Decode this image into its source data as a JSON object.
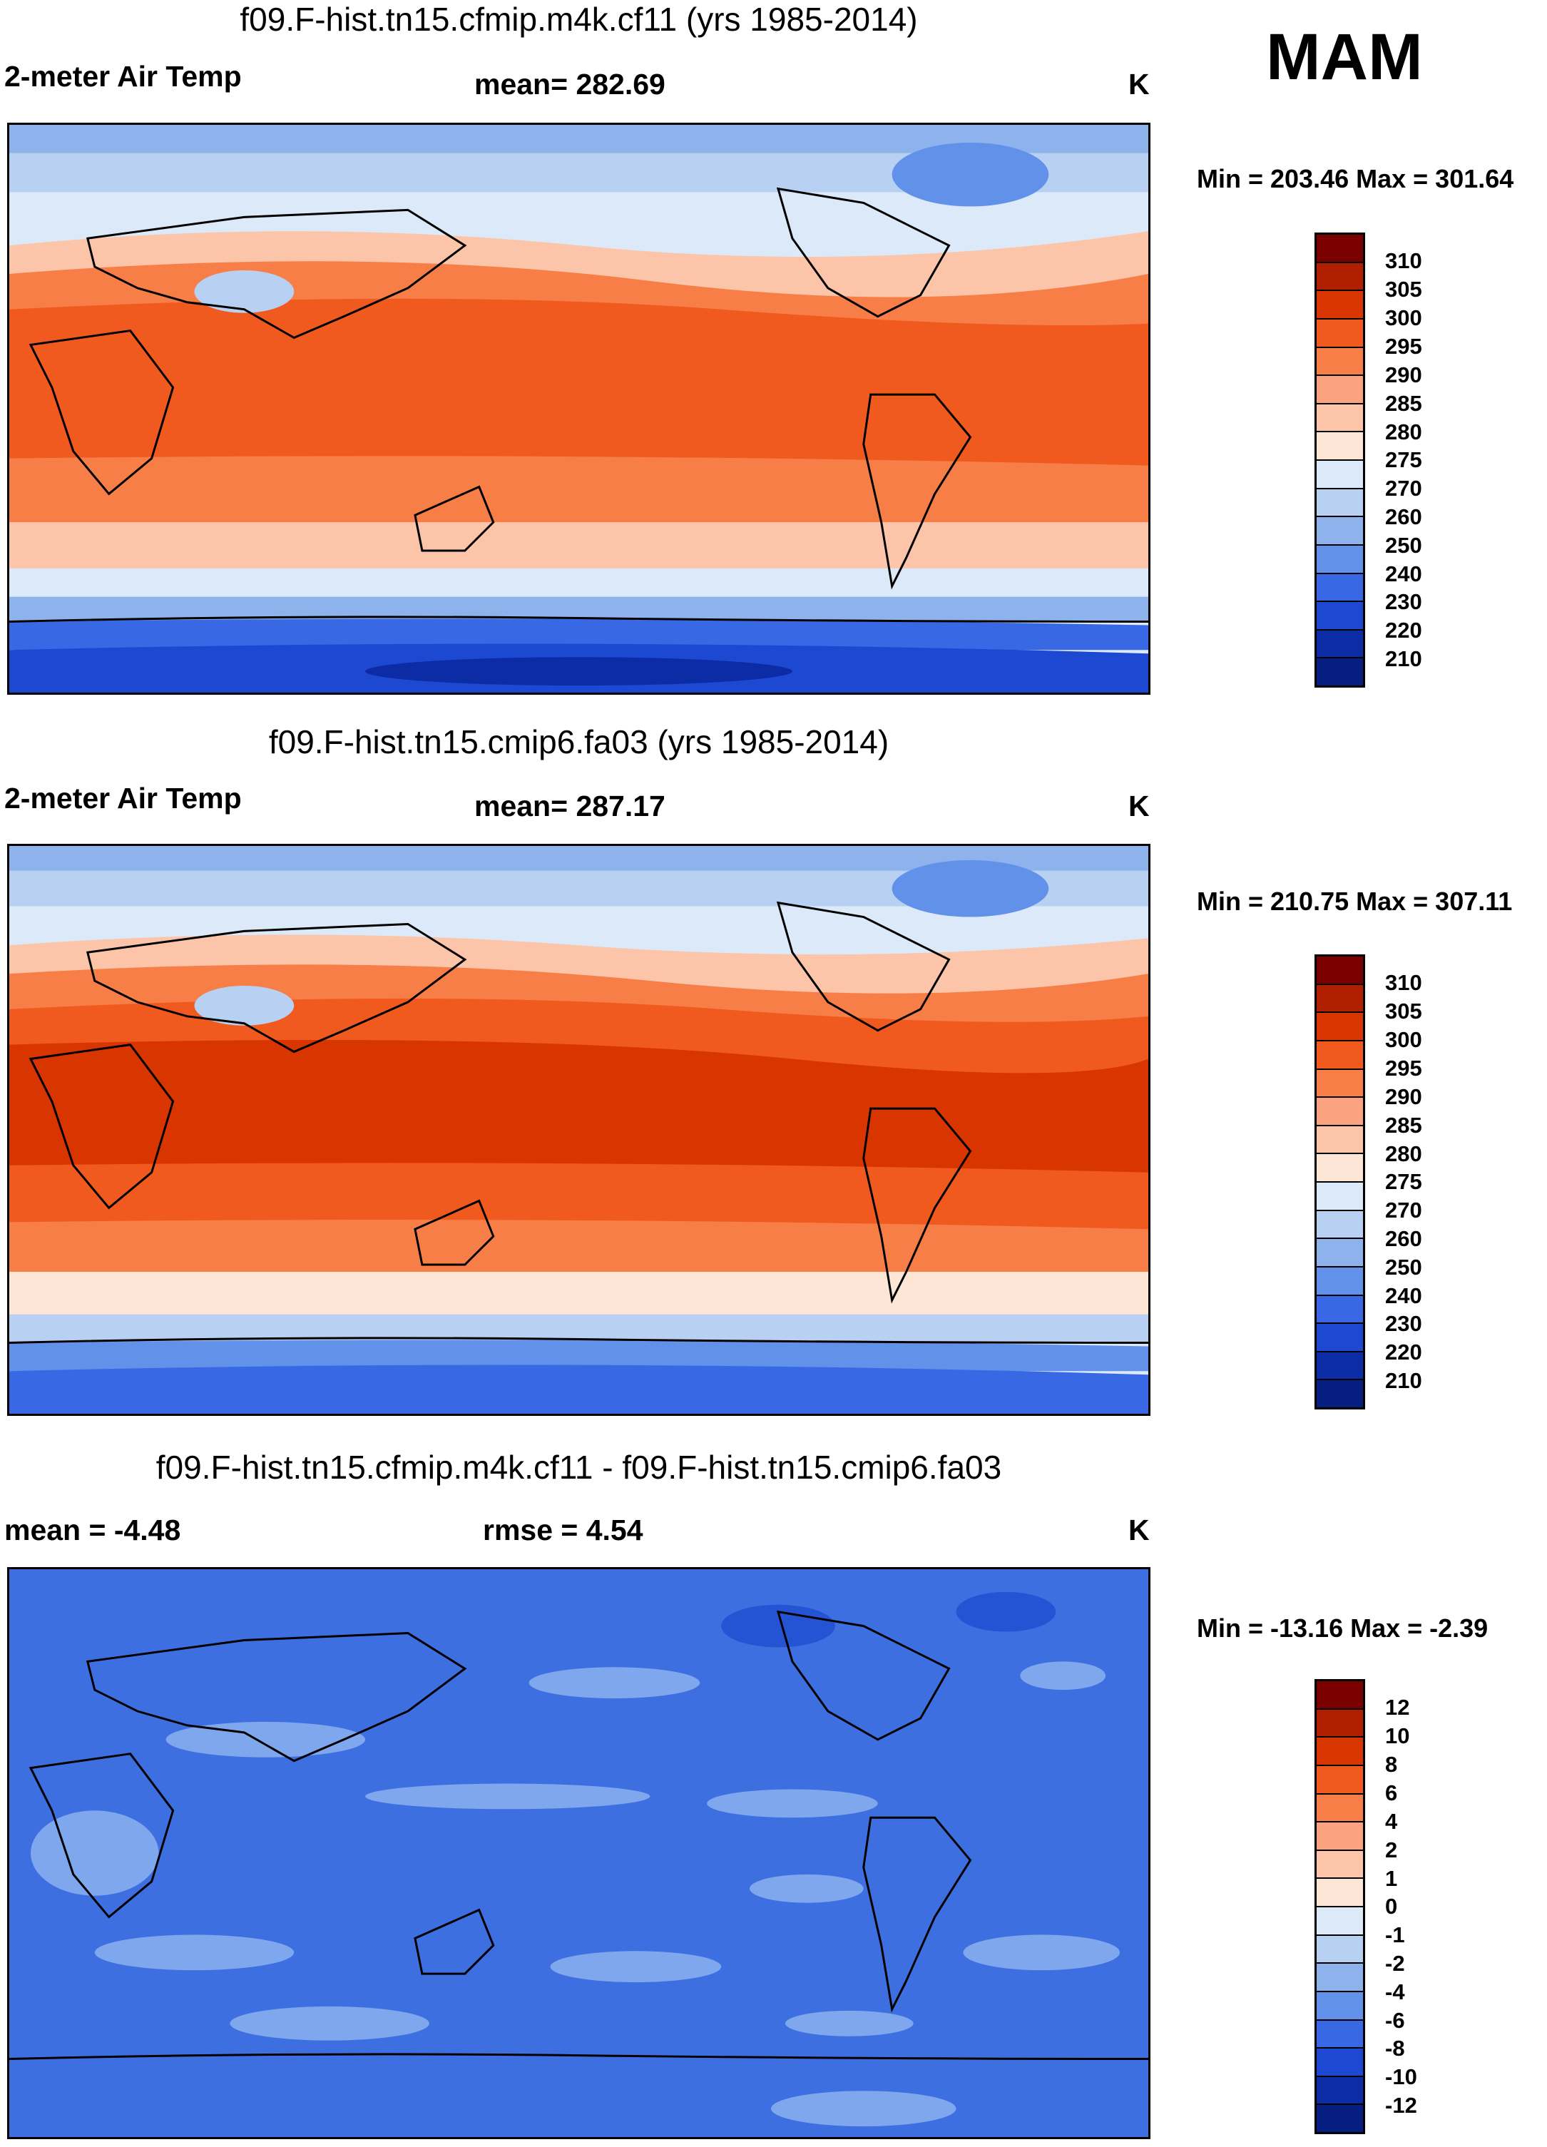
{
  "season": "MAM",
  "panels": [
    {
      "title": "f09.F-hist.tn15.cfmip.m4k.cf11 (yrs 1985-2014)",
      "left_label": "2-meter Air Temp",
      "center_label": "mean= 282.69",
      "units": "K",
      "minmax": "Min = 203.46 Max = 301.64",
      "ticks": [
        "310",
        "305",
        "300",
        "295",
        "290",
        "285",
        "280",
        "275",
        "270",
        "260",
        "250",
        "240",
        "230",
        "220",
        "210"
      ]
    },
    {
      "title": "f09.F-hist.tn15.cmip6.fa03 (yrs 1985-2014)",
      "left_label": "2-meter Air Temp",
      "center_label": "mean= 287.17",
      "units": "K",
      "minmax": "Min = 210.75 Max = 307.11",
      "ticks": [
        "310",
        "305",
        "300",
        "295",
        "290",
        "285",
        "280",
        "275",
        "270",
        "260",
        "250",
        "240",
        "230",
        "220",
        "210"
      ]
    },
    {
      "title": "f09.F-hist.tn15.cfmip.m4k.cf11 - f09.F-hist.tn15.cmip6.fa03",
      "left_label": "mean =  -4.48",
      "center_label": "rmse =   4.54",
      "units": "K",
      "minmax": "Min = -13.16 Max =  -2.39",
      "ticks": [
        "12",
        "10",
        "8",
        "6",
        "4",
        "2",
        "1",
        "0",
        "-1",
        "-2",
        "-4",
        "-6",
        "-8",
        "-10",
        "-12"
      ]
    }
  ],
  "colors": {
    "scale": [
      "#7a0000",
      "#b01f00",
      "#d93500",
      "#f05a1e",
      "#f77e47",
      "#fba27f",
      "#fcc4a9",
      "#fde6d6",
      "#dce9f8",
      "#b8d1f2",
      "#8eb2ec",
      "#6291ea",
      "#3868e4",
      "#1c48d2",
      "#0c2ca6",
      "#061e80"
    ],
    "diff_bg": "#3d6fe0",
    "diff_light": "#7fa7ee",
    "diff_dark": "#2453d4"
  }
}
